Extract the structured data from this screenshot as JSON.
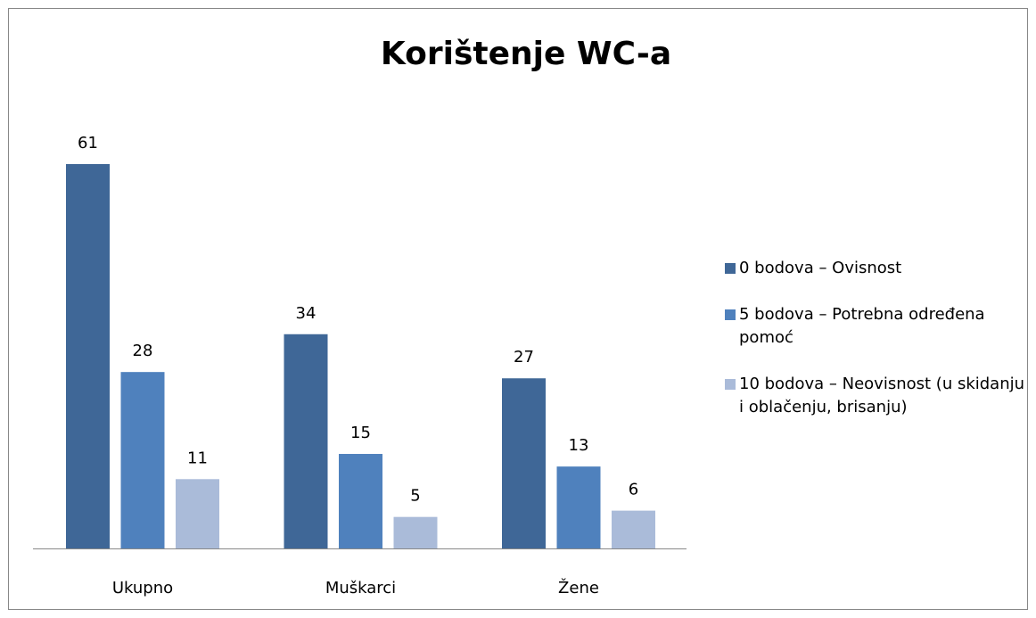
{
  "chart_data": {
    "type": "bar",
    "title": "Korištenje WC-a",
    "categories": [
      "Ukupno",
      "Muškarci",
      "Žene"
    ],
    "series": [
      {
        "name": "0 bodova – Ovisnost",
        "color": "#3f6797",
        "values": [
          61,
          34,
          27
        ]
      },
      {
        "name": "5 bodova – Potrebna određena pomoć",
        "color": "#4f81bd",
        "values": [
          28,
          15,
          13
        ]
      },
      {
        "name": "10 bodova – Neovisnost (u skidanju i oblačenju, brisanju)",
        "color": "#aabbd9",
        "values": [
          11,
          5,
          6
        ]
      }
    ],
    "legend": "right"
  }
}
